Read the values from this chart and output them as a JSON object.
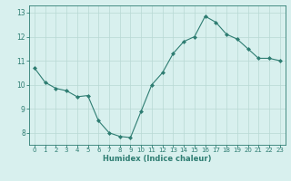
{
  "x": [
    0,
    1,
    2,
    3,
    4,
    5,
    6,
    7,
    8,
    9,
    10,
    11,
    12,
    13,
    14,
    15,
    16,
    17,
    18,
    19,
    20,
    21,
    22,
    23
  ],
  "y": [
    10.7,
    10.1,
    9.85,
    9.75,
    9.5,
    9.55,
    8.5,
    8.0,
    7.85,
    7.8,
    8.9,
    10.0,
    10.5,
    11.3,
    11.8,
    12.0,
    12.85,
    12.6,
    12.1,
    11.9,
    11.5,
    11.1,
    11.1,
    11.0
  ],
  "xlabel": "Humidex (Indice chaleur)",
  "ylim": [
    7.5,
    13.3
  ],
  "xlim": [
    -0.5,
    23.5
  ],
  "yticks": [
    8,
    9,
    10,
    11,
    12,
    13
  ],
  "xticks": [
    0,
    1,
    2,
    3,
    4,
    5,
    6,
    7,
    8,
    9,
    10,
    11,
    12,
    13,
    14,
    15,
    16,
    17,
    18,
    19,
    20,
    21,
    22,
    23
  ],
  "line_color": "#2e7d72",
  "marker_color": "#2e7d72",
  "bg_color": "#d8f0ee",
  "grid_color": "#b8d8d4",
  "axis_color": "#2e7d72",
  "tick_fontsize": 5.0,
  "xlabel_fontsize": 6.0
}
